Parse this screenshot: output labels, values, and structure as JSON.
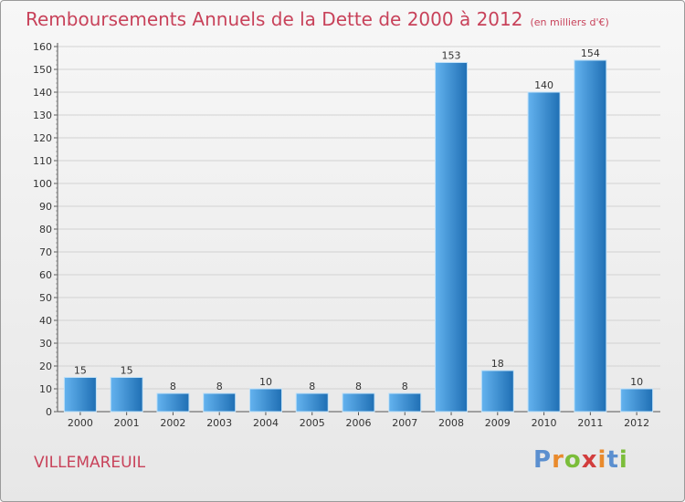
{
  "title": "Remboursements Annuels de la Dette de 2000 à 2012",
  "subtitle": "(en milliers d'€)",
  "commune": "VILLEMAREUIL",
  "logo": {
    "text": "Proxiti",
    "letter_colors": [
      "#5b8fcf",
      "#e98a2c",
      "#7bbd3a",
      "#d23d3d",
      "#e98a2c",
      "#5b8fcf",
      "#7bbd3a"
    ]
  },
  "colors": {
    "title": "#c8425a",
    "bar_light": "#64b3ef",
    "bar_dark": "#1f6fb4"
  },
  "chart_data": {
    "type": "bar",
    "categories": [
      "2000",
      "2001",
      "2002",
      "2003",
      "2004",
      "2005",
      "2006",
      "2007",
      "2008",
      "2009",
      "2010",
      "2011",
      "2012"
    ],
    "values": [
      15,
      15,
      8,
      8,
      10,
      8,
      8,
      8,
      153,
      18,
      140,
      154,
      10
    ],
    "ylim": [
      0,
      160
    ],
    "yticks": [
      0,
      10,
      20,
      30,
      40,
      50,
      60,
      70,
      80,
      90,
      100,
      110,
      120,
      130,
      140,
      150,
      160
    ],
    "grid": true
  }
}
